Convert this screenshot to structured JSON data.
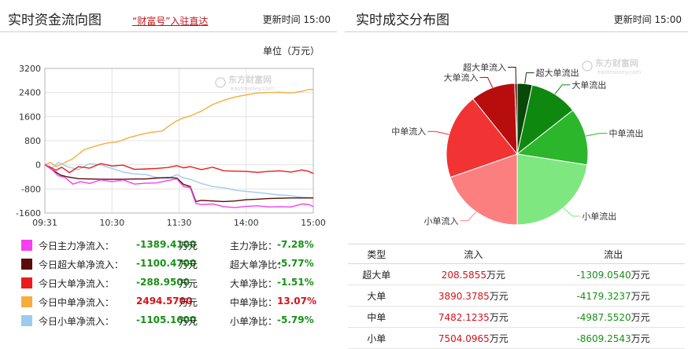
{
  "left_panel": {
    "title": "实时资金流向图",
    "link": "“财富号”入驻直达",
    "update_label": "更新时间",
    "update_time": "15:00",
    "unit": "单位（万元）",
    "watermark": "东方财富网",
    "watermark_sub": "eastmoney.com"
  },
  "right_panel": {
    "title": "实时成交分布图",
    "update_label": "更新时间",
    "update_time": "15:00",
    "watermark": "东方财富网",
    "watermark_sub": "eastmoney.com"
  },
  "legend": [
    {
      "name": "今日主力净流入：",
      "value": "-1389.4100",
      "unit": "万元",
      "ratio_label": "主力净比：",
      "ratio": "-7.28%",
      "color": "#f53ff0",
      "value_color": "green",
      "ratio_color": "green"
    },
    {
      "name": "今日超大单净流入：",
      "value": "-1100.4700",
      "unit": "万元",
      "ratio_label": "超大单净比：",
      "ratio": "-5.77%",
      "color": "#5a0b0b",
      "value_color": "green",
      "ratio_color": "green"
    },
    {
      "name": "今日大单净流入：",
      "value": "-288.9500",
      "unit": "万元",
      "ratio_label": "大单净比：",
      "ratio": "-1.51%",
      "color": "#e81c1c",
      "value_color": "green",
      "ratio_color": "green"
    },
    {
      "name": "今日中单净流入：",
      "value": "2494.5700",
      "unit": "万元",
      "ratio_label": "中单净比：",
      "ratio": "13.07%",
      "color": "#f6ad3c",
      "value_color": "red",
      "ratio_color": "red"
    },
    {
      "name": "今日小单净流入：",
      "value": "-1105.1600",
      "unit": "万元",
      "ratio_label": "小单净比：",
      "ratio": "-5.79%",
      "color": "#9fcaf0",
      "value_color": "green",
      "ratio_color": "green"
    }
  ],
  "table": {
    "headers": [
      "类型",
      "流入",
      "流出"
    ],
    "rows": [
      {
        "type": "超大单",
        "in": "208.5855",
        "in_unit": "万元",
        "out": "-1309.0540",
        "out_unit": "万元"
      },
      {
        "type": "大单",
        "in": "3890.3785",
        "in_unit": "万元",
        "out": "-4179.3237",
        "out_unit": "万元"
      },
      {
        "type": "中单",
        "in": "7482.1235",
        "in_unit": "万元",
        "out": "-4987.5520",
        "out_unit": "万元"
      },
      {
        "type": "小单",
        "in": "7504.0965",
        "in_unit": "万元",
        "out": "-8609.2543",
        "out_unit": "万元"
      }
    ]
  },
  "chart_data": [
    {
      "type": "line",
      "title": "实时资金流向图",
      "ylim": [
        -1600,
        3200
      ],
      "yticks": [
        -1600,
        -800,
        0,
        800,
        1600,
        2400,
        3200
      ],
      "xlim": [
        0,
        240
      ],
      "xticks": [
        {
          "t": 0,
          "label": "09:31"
        },
        {
          "t": 60,
          "label": "10:30"
        },
        {
          "t": 120,
          "label": "11:30"
        },
        {
          "t": 180,
          "label": "14:00"
        },
        {
          "t": 240,
          "label": "15:00"
        }
      ],
      "grid": true,
      "series": [
        {
          "name": "今日中单净流入",
          "color": "#f6ad3c",
          "points": [
            [
              0,
              0
            ],
            [
              5,
              80
            ],
            [
              10,
              -60
            ],
            [
              18,
              80
            ],
            [
              25,
              200
            ],
            [
              35,
              500
            ],
            [
              45,
              620
            ],
            [
              55,
              720
            ],
            [
              65,
              760
            ],
            [
              75,
              900
            ],
            [
              85,
              1000
            ],
            [
              95,
              1080
            ],
            [
              105,
              1120
            ],
            [
              112,
              1320
            ],
            [
              118,
              1460
            ],
            [
              124,
              1560
            ],
            [
              130,
              1620
            ],
            [
              140,
              1780
            ],
            [
              150,
              2000
            ],
            [
              160,
              2140
            ],
            [
              170,
              2250
            ],
            [
              180,
              2320
            ],
            [
              190,
              2380
            ],
            [
              200,
              2400
            ],
            [
              210,
              2410
            ],
            [
              220,
              2380
            ],
            [
              230,
              2440
            ],
            [
              236,
              2500
            ],
            [
              240,
              2495
            ]
          ]
        },
        {
          "name": "今日小单净流入",
          "color": "#9fcaf0",
          "points": [
            [
              0,
              0
            ],
            [
              6,
              -120
            ],
            [
              12,
              80
            ],
            [
              20,
              -60
            ],
            [
              30,
              -160
            ],
            [
              40,
              40
            ],
            [
              50,
              0
            ],
            [
              60,
              -120
            ],
            [
              70,
              -240
            ],
            [
              80,
              -300
            ],
            [
              90,
              -320
            ],
            [
              100,
              -420
            ],
            [
              110,
              -450
            ],
            [
              118,
              -330
            ],
            [
              124,
              -430
            ],
            [
              130,
              -480
            ],
            [
              140,
              -620
            ],
            [
              150,
              -720
            ],
            [
              160,
              -760
            ],
            [
              170,
              -840
            ],
            [
              180,
              -880
            ],
            [
              190,
              -920
            ],
            [
              200,
              -960
            ],
            [
              210,
              -1000
            ],
            [
              220,
              -1020
            ],
            [
              230,
              -1080
            ],
            [
              240,
              -1105
            ]
          ]
        },
        {
          "name": "今日大单净流入",
          "color": "#e81c1c",
          "points": [
            [
              0,
              0
            ],
            [
              5,
              -80
            ],
            [
              10,
              -180
            ],
            [
              15,
              -80
            ],
            [
              22,
              -260
            ],
            [
              30,
              -60
            ],
            [
              40,
              -110
            ],
            [
              50,
              40
            ],
            [
              60,
              -40
            ],
            [
              70,
              -10
            ],
            [
              80,
              -150
            ],
            [
              90,
              -140
            ],
            [
              100,
              -120
            ],
            [
              110,
              -90
            ],
            [
              118,
              -30
            ],
            [
              124,
              -100
            ],
            [
              130,
              -60
            ],
            [
              140,
              -160
            ],
            [
              150,
              -80
            ],
            [
              160,
              -200
            ],
            [
              170,
              -210
            ],
            [
              180,
              -220
            ],
            [
              190,
              -250
            ],
            [
              200,
              -220
            ],
            [
              210,
              -200
            ],
            [
              220,
              -240
            ],
            [
              230,
              -170
            ],
            [
              236,
              -220
            ],
            [
              240,
              -289
            ]
          ]
        },
        {
          "name": "今日超大单净流入",
          "color": "#5a0b0b",
          "points": [
            [
              0,
              0
            ],
            [
              8,
              -200
            ],
            [
              14,
              -340
            ],
            [
              20,
              -400
            ],
            [
              30,
              -460
            ],
            [
              40,
              -470
            ],
            [
              50,
              -480
            ],
            [
              60,
              -480
            ],
            [
              70,
              -480
            ],
            [
              80,
              -470
            ],
            [
              90,
              -470
            ],
            [
              100,
              -440
            ],
            [
              110,
              -420
            ],
            [
              118,
              -440
            ],
            [
              124,
              -650
            ],
            [
              130,
              -720
            ],
            [
              135,
              -1220
            ],
            [
              140,
              -1180
            ],
            [
              150,
              -1200
            ],
            [
              160,
              -1220
            ],
            [
              170,
              -1200
            ],
            [
              180,
              -1160
            ],
            [
              190,
              -1140
            ],
            [
              200,
              -1120
            ],
            [
              210,
              -1110
            ],
            [
              220,
              -1100
            ],
            [
              230,
              -1100
            ],
            [
              240,
              -1100
            ]
          ]
        },
        {
          "name": "今日主力净流入",
          "color": "#f53ff0",
          "points": [
            [
              0,
              0
            ],
            [
              6,
              -150
            ],
            [
              12,
              -360
            ],
            [
              18,
              -420
            ],
            [
              25,
              -640
            ],
            [
              32,
              -560
            ],
            [
              40,
              -620
            ],
            [
              50,
              -500
            ],
            [
              60,
              -560
            ],
            [
              70,
              -500
            ],
            [
              80,
              -640
            ],
            [
              90,
              -610
            ],
            [
              100,
              -600
            ],
            [
              110,
              -520
            ],
            [
              118,
              -470
            ],
            [
              124,
              -720
            ],
            [
              130,
              -760
            ],
            [
              135,
              -1280
            ],
            [
              140,
              -1320
            ],
            [
              150,
              -1300
            ],
            [
              160,
              -1390
            ],
            [
              170,
              -1420
            ],
            [
              180,
              -1380
            ],
            [
              190,
              -1360
            ],
            [
              200,
              -1400
            ],
            [
              210,
              -1390
            ],
            [
              220,
              -1400
            ],
            [
              230,
              -1300
            ],
            [
              236,
              -1320
            ],
            [
              240,
              -1389
            ]
          ]
        }
      ]
    },
    {
      "type": "pie",
      "title": "实时成交分布图",
      "slices": [
        {
          "label": "超大单流出",
          "value": 1309.054,
          "color": "#084808"
        },
        {
          "label": "大单流出",
          "value": 4179.3237,
          "color": "#0f880f"
        },
        {
          "label": "中单流出",
          "value": 4987.552,
          "color": "#2bb62b"
        },
        {
          "label": "小单流出",
          "value": 8609.2543,
          "color": "#7fe77f"
        },
        {
          "label": "小单流入",
          "value": 7504.0965,
          "color": "#fb7f7f"
        },
        {
          "label": "中单流入",
          "value": 7482.1235,
          "color": "#f23333"
        },
        {
          "label": "大单流入",
          "value": 3890.3785,
          "color": "#b70d0d"
        },
        {
          "label": "超大单流入",
          "value": 208.5855,
          "color": "#4a0404"
        }
      ]
    }
  ]
}
